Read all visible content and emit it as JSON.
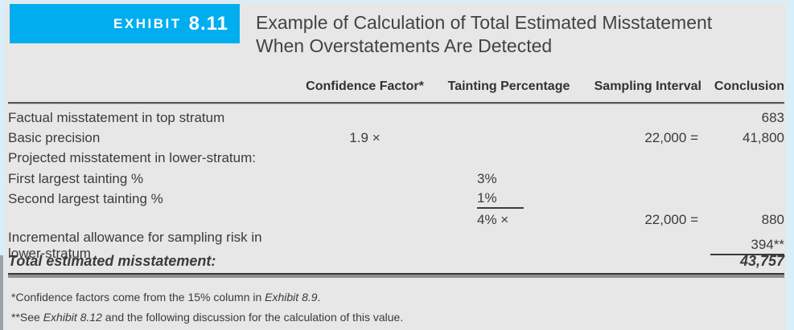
{
  "exhibit": {
    "label_prefix": "EXHIBIT",
    "label_number": "8.11",
    "title_line1": "Example of Calculation of Total Estimated Misstatement",
    "title_line2": "When Overstatements Are Detected"
  },
  "table": {
    "headers": [
      "Confidence Factor*",
      "Tainting Percentage",
      "Sampling Interval",
      "Conclusion"
    ],
    "rows": [
      {
        "label": "Factual misstatement in top stratum",
        "conclusion": "683"
      },
      {
        "label": "Basic precision",
        "confidence_factor": "1.9 ×",
        "sampling_interval": "22,000 =",
        "conclusion": "41,800"
      },
      {
        "label": "Projected misstatement in lower-stratum:"
      },
      {
        "label": "First largest tainting %",
        "tainting_percentage": "3%"
      },
      {
        "label": "Second largest tainting %",
        "tainting_percentage": "1%"
      },
      {
        "label": "",
        "tainting_percentage": "4% ×",
        "sampling_interval": "22,000 =",
        "conclusion": "880"
      },
      {
        "label": "Incremental allowance for sampling risk in lower-stratum",
        "conclusion": "394**"
      },
      {
        "label": "Total estimated misstatement:",
        "conclusion": "43,757"
      }
    ]
  },
  "footnotes": [
    {
      "marker": "*",
      "pre": "Confidence factors come from the 15% column in ",
      "italic": "Exhibit 8.9",
      "post": "."
    },
    {
      "marker": "**",
      "pre": "See ",
      "italic": "Exhibit 8.12",
      "post": " and the following discussion for the calculation of this value."
    }
  ],
  "colors": {
    "banner_blue": "#00AEEF",
    "page_background": "#E7E7E8",
    "border_tint": "#D8EEF8",
    "text": "#3B3B3D",
    "rule_dark": "#39393B",
    "rule_gray": "#8E8E90"
  }
}
